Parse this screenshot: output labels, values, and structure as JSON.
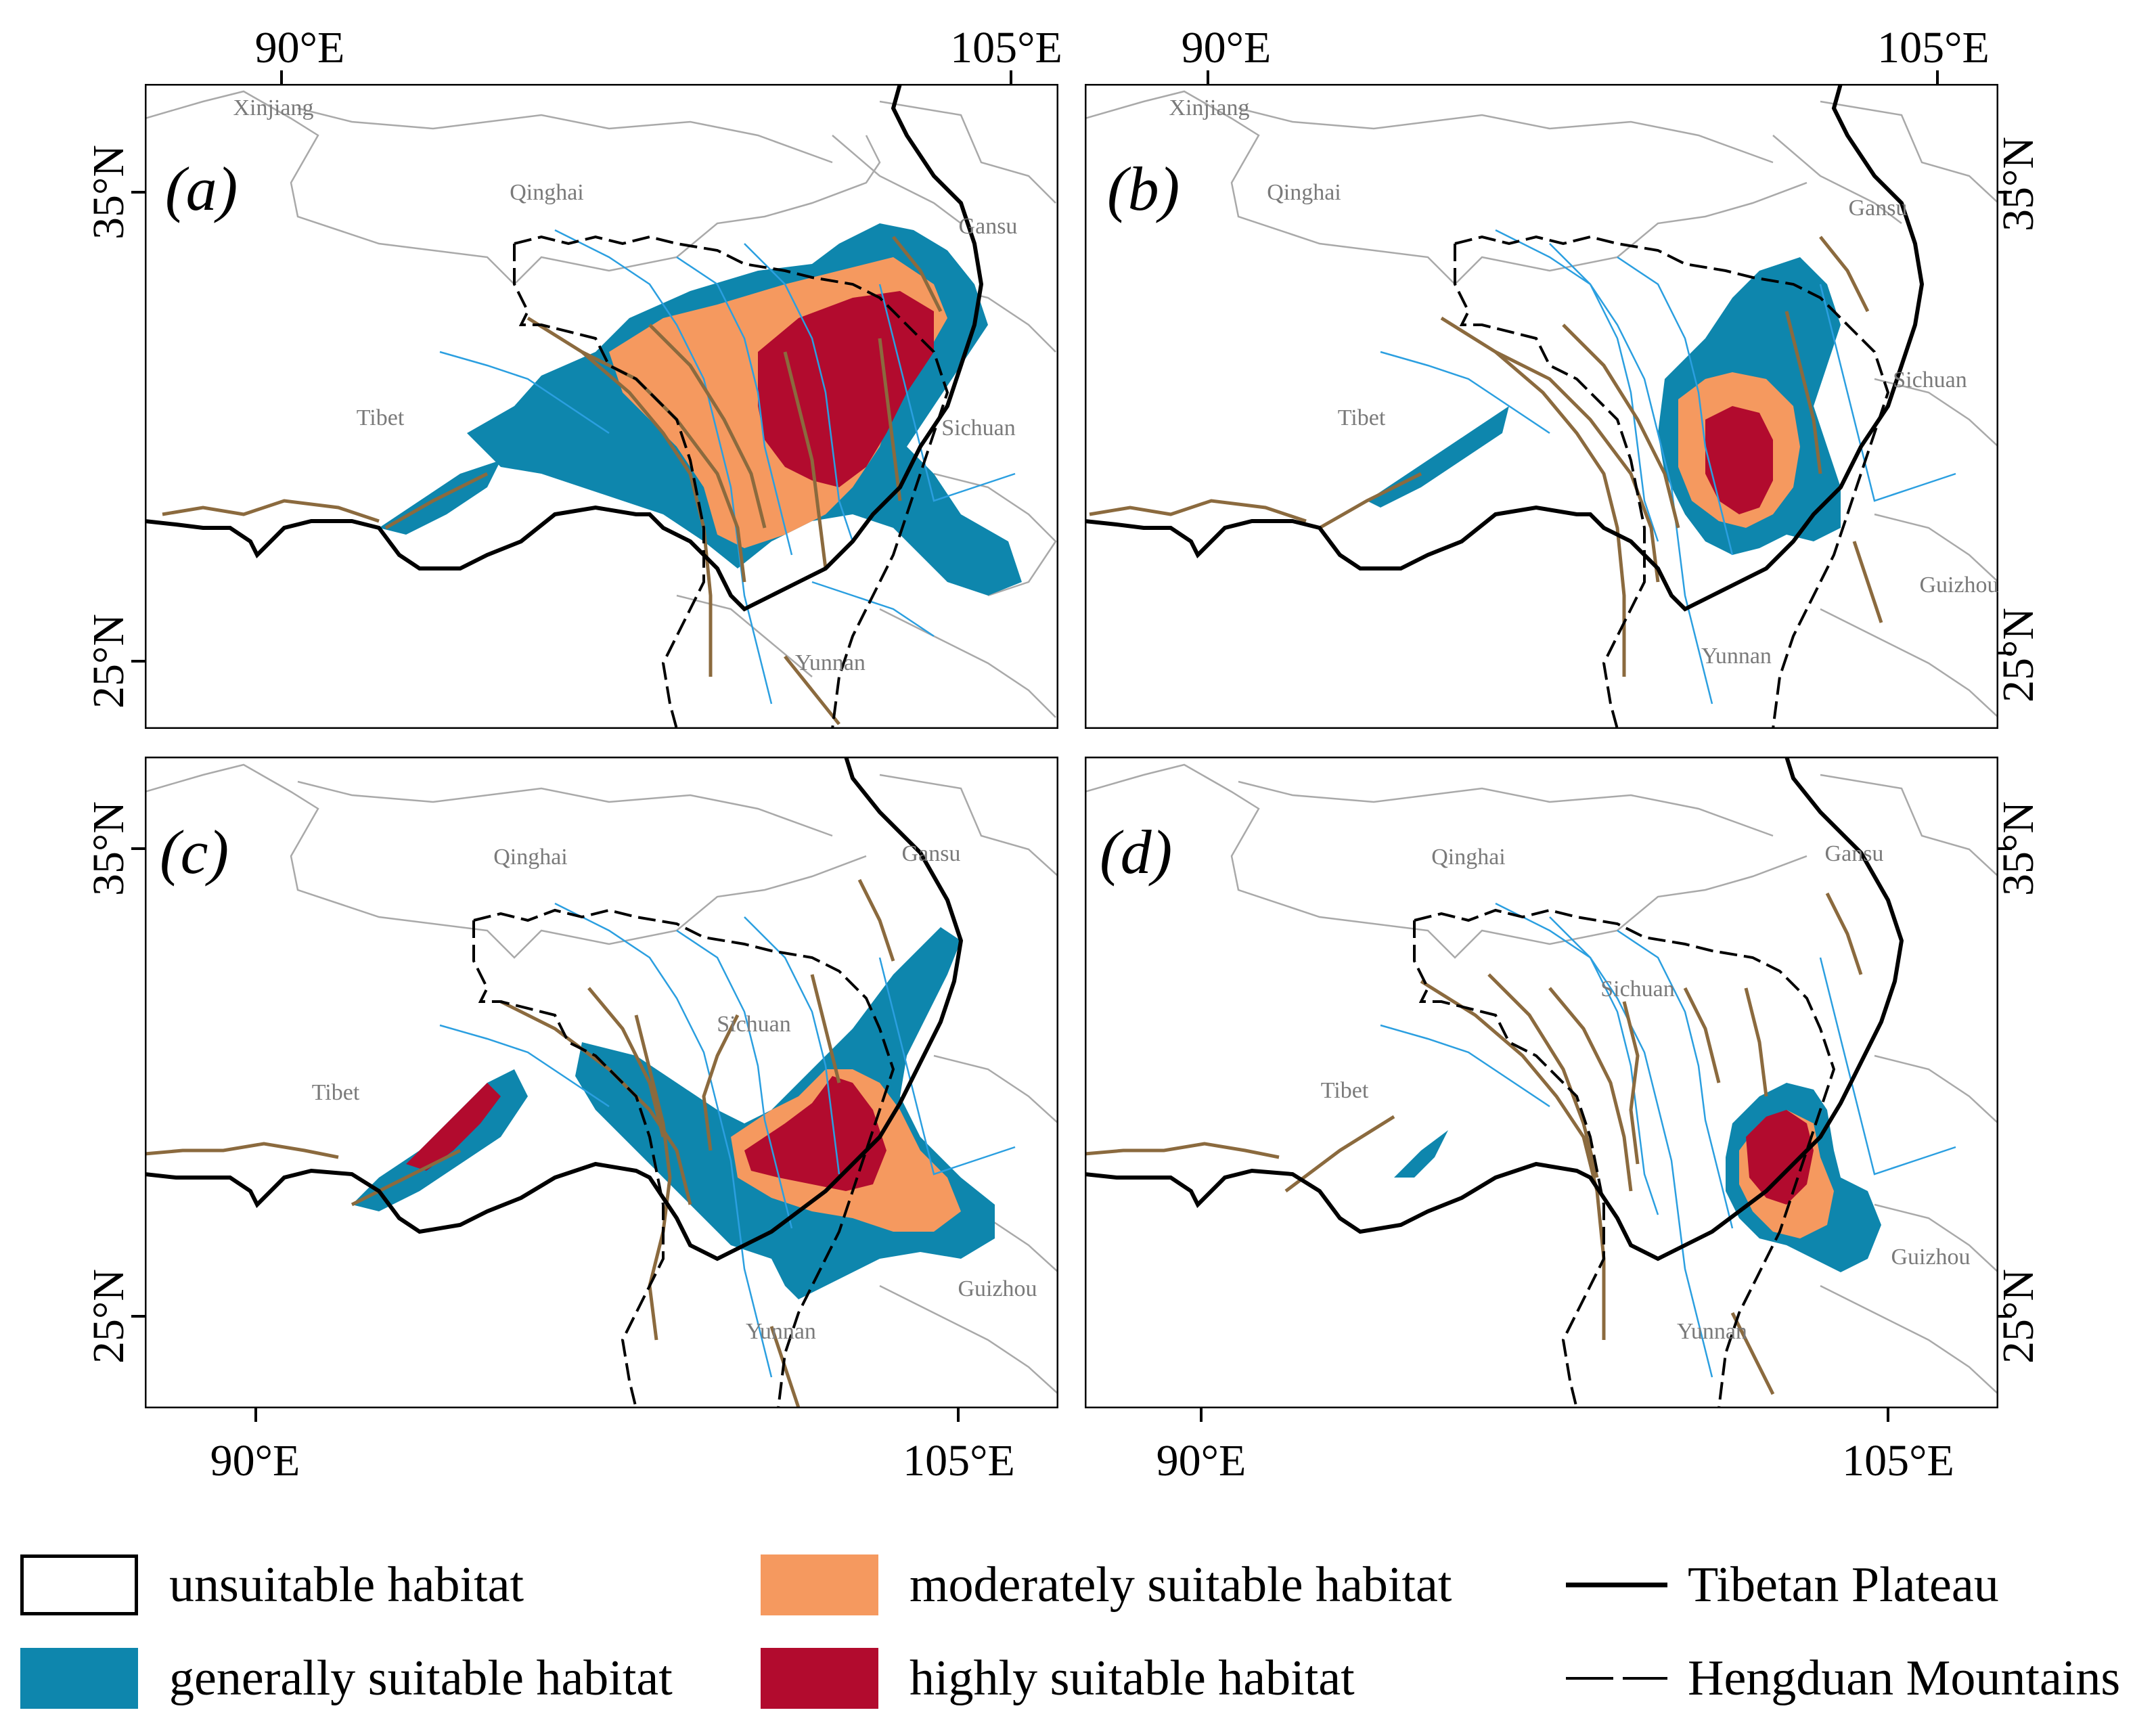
{
  "colors": {
    "unsuitable": "#ffffff",
    "generally": "#0e86ad",
    "moderately": "#f5995f",
    "highly": "#b20b2e",
    "river": "#2b9fe0",
    "fault": "#8b6a3e",
    "province": "#a9a9a9",
    "plateau": "#000000"
  },
  "panels": [
    {
      "label": "(a)",
      "top_ticks": [
        "90°E",
        "105°E"
      ],
      "left_ticks": [
        "35°N",
        "25°N"
      ],
      "places": [
        "Xinjiang",
        "Qinghai",
        "Gansu",
        "Tibet",
        "Sichuan",
        "Yunnan"
      ]
    },
    {
      "label": "(b)",
      "top_ticks": [
        "90°E",
        "105°E"
      ],
      "right_ticks": [
        "35°N",
        "25°N"
      ],
      "places": [
        "Xinjiang",
        "Qinghai",
        "Gansu",
        "Tibet",
        "Sichuan",
        "Guizhou",
        "Yunnan"
      ]
    },
    {
      "label": "(c)",
      "bottom_ticks": [
        "90°E",
        "105°E"
      ],
      "left_ticks": [
        "35°N",
        "25°N"
      ],
      "places": [
        "Qinghai",
        "Gansu",
        "Sichuan",
        "Tibet",
        "Guizhou",
        "Yunnan"
      ]
    },
    {
      "label": "(d)",
      "bottom_ticks": [
        "90°E",
        "105°E"
      ],
      "right_ticks": [
        "35°N",
        "25°N"
      ],
      "places": [
        "Qinghai",
        "Gansu",
        "Sichuan",
        "Tibet",
        "Guizhou",
        "Yunnan"
      ]
    }
  ],
  "legend": {
    "unsuitable": "unsuitable habitat",
    "generally": "generally suitable habitat",
    "moderately": "moderately suitable habitat",
    "highly": "highly suitable habitat",
    "plateau": "Tibetan Plateau",
    "hengduan": "Hengduan Mountains"
  }
}
